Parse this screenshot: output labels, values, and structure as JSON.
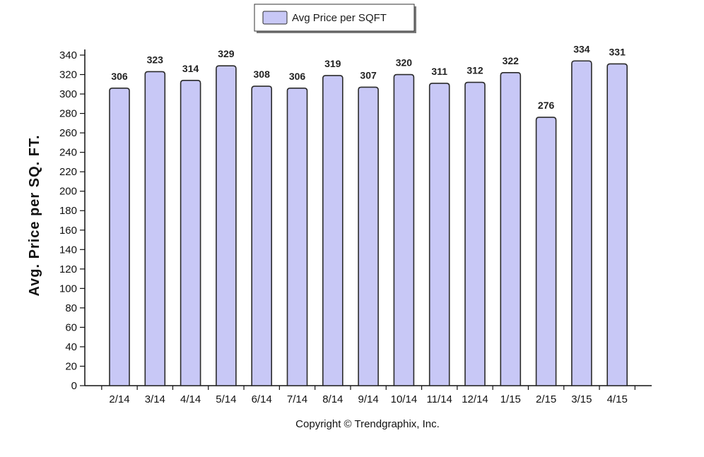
{
  "legend": {
    "label": "Avg Price per SQFT"
  },
  "copyright": "Copyright © Trendgraphix, Inc.",
  "colors": {
    "bar_fill": "#c8c8f6",
    "bar_stroke": "#2b2b2b",
    "axis": "#111111"
  },
  "chart_data": {
    "type": "bar",
    "title": "",
    "xlabel": "",
    "ylabel": "Avg. Price per SQ. FT.",
    "ylim": [
      0,
      340
    ],
    "ytick_step": 20,
    "yticks": [
      0,
      20,
      40,
      60,
      80,
      100,
      120,
      140,
      160,
      180,
      200,
      220,
      240,
      260,
      280,
      300,
      320,
      340
    ],
    "grid": false,
    "legend_position": "top-center",
    "categories": [
      "2/14",
      "3/14",
      "4/14",
      "5/14",
      "6/14",
      "7/14",
      "8/14",
      "9/14",
      "10/14",
      "11/14",
      "12/14",
      "1/15",
      "2/15",
      "3/15",
      "4/15"
    ],
    "series": [
      {
        "name": "Avg Price per SQFT",
        "values": [
          306,
          323,
          314,
          329,
          308,
          306,
          319,
          307,
          320,
          311,
          312,
          322,
          276,
          334,
          331
        ]
      }
    ]
  }
}
